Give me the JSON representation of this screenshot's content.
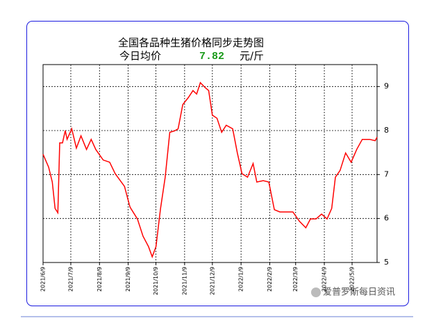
{
  "chart_data": {
    "type": "line",
    "title": "全国各品种生猪价格同步走势图",
    "subtitle_label": "今日均价",
    "subtitle_value": "7.82",
    "subtitle_unit": "元/斤",
    "watermark": "爱普罗斯每日资讯",
    "x": [
      "2021/6/9",
      "2021/6/15",
      "2021/6/19",
      "2021/6/22",
      "2021/6/25",
      "2021/6/27",
      "2021/6/30",
      "2021/7/3",
      "2021/7/5",
      "2021/7/10",
      "2021/7/15",
      "2021/7/20",
      "2021/7/26",
      "2021/7/31",
      "2021/8/5",
      "2021/8/13",
      "2021/8/20",
      "2021/8/26",
      "2021/9/5",
      "2021/9/11",
      "2021/9/19",
      "2021/9/25",
      "2021/10/1",
      "2021/10/5",
      "2021/10/9",
      "2021/10/14",
      "2021/10/19",
      "2021/10/24",
      "2021/10/29",
      "2021/11/2",
      "2021/11/7",
      "2021/11/13",
      "2021/11/18",
      "2021/11/22",
      "2021/11/26",
      "2021/12/1",
      "2021/12/5",
      "2021/12/9",
      "2021/12/14",
      "2021/12/19",
      "2021/12/24",
      "2021/12/31",
      "2022/1/5",
      "2022/1/10",
      "2022/1/16",
      "2022/1/22",
      "2022/1/26",
      "2022/2/2",
      "2022/2/8",
      "2022/2/14",
      "2022/2/20",
      "2022/2/27",
      "2022/3/6",
      "2022/3/13",
      "2022/3/20",
      "2022/3/25",
      "2022/3/31",
      "2022/4/6",
      "2022/4/12",
      "2022/4/17",
      "2022/4/21",
      "2022/4/26",
      "2022/5/2",
      "2022/5/8",
      "2022/5/14",
      "2022/5/20",
      "2022/5/28",
      "2022/6/3",
      "2022/6/5"
    ],
    "series": [
      {
        "color": "#ff0000",
        "values": [
          7.46,
          7.17,
          6.83,
          6.23,
          6.13,
          7.72,
          7.72,
          8.0,
          7.8,
          8.04,
          7.6,
          7.88,
          7.57,
          7.8,
          7.57,
          7.33,
          7.28,
          7.02,
          6.73,
          6.26,
          5.99,
          5.6,
          5.36,
          5.13,
          5.36,
          6.23,
          6.94,
          7.96,
          7.99,
          8.04,
          8.59,
          8.75,
          8.91,
          8.83,
          9.09,
          8.98,
          8.91,
          8.35,
          8.28,
          7.96,
          8.12,
          8.04,
          7.49,
          7.02,
          6.94,
          7.25,
          6.83,
          6.86,
          6.83,
          6.2,
          6.15,
          6.15,
          6.15,
          5.94,
          5.79,
          5.99,
          5.99,
          6.1,
          5.99,
          6.23,
          6.94,
          7.09,
          7.49,
          7.28,
          7.57,
          7.8,
          7.8,
          7.77,
          7.85
        ]
      }
    ],
    "xlim": [
      "2021/6/9",
      "2022/6/5"
    ],
    "xticks": [
      "2021/6/9",
      "2021/7/9",
      "2021/8/9",
      "2021/9/9",
      "2021/10/9",
      "2021/11/9",
      "2021/12/9",
      "2022/1/9",
      "2022/2/9",
      "2022/3/9",
      "2022/4/9",
      "2022/5/9"
    ],
    "ylim": [
      5,
      9.5
    ],
    "yticks": [
      5,
      6,
      7,
      8,
      9
    ],
    "grid": true
  }
}
